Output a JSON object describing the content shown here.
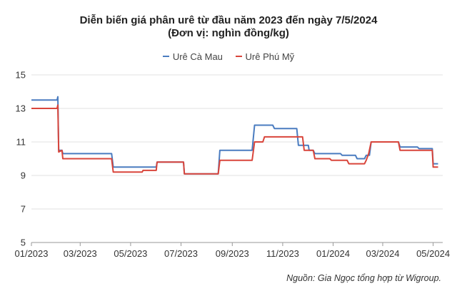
{
  "title_line1": "Diễn biến giá phân urê từ đầu năm 2023 đến ngày 7/5/2024",
  "title_line2": "(Đơn vị: nghìn đồng/kg)",
  "source": "Nguồn: Gia Ngọc tổng hợp từ Wigroup.",
  "chart_data": {
    "type": "line",
    "title": "Diễn biến giá phân urê từ đầu năm 2023 đến ngày 7/5/2024",
    "subtitle": "(Đơn vị: nghìn đồng/kg)",
    "xlabel": "",
    "ylabel": "",
    "xlim": [
      "2023-01-01",
      "2024-05-07"
    ],
    "ylim": [
      5,
      15
    ],
    "yticks": [
      5,
      7,
      9,
      11,
      13,
      15
    ],
    "xtick_labels": [
      "01/2023",
      "03/2023",
      "05/2023",
      "07/2023",
      "09/2023",
      "11/2023",
      "01/2024",
      "03/2024",
      "05/2024"
    ],
    "grid": true,
    "legend_position": "top-center",
    "series": [
      {
        "name": "Urê Cà Mau",
        "color": "#4a7cc0",
        "points": [
          [
            "2023-01-01",
            13.5
          ],
          [
            "2023-02-01",
            13.5
          ],
          [
            "2023-02-02",
            13.7
          ],
          [
            "2023-02-03",
            10.5
          ],
          [
            "2023-02-07",
            10.5
          ],
          [
            "2023-02-08",
            10.3
          ],
          [
            "2023-04-08",
            10.3
          ],
          [
            "2023-04-10",
            9.5
          ],
          [
            "2023-06-01",
            9.5
          ],
          [
            "2023-06-02",
            9.8
          ],
          [
            "2023-07-04",
            9.8
          ],
          [
            "2023-07-05",
            9.1
          ],
          [
            "2023-08-15",
            9.1
          ],
          [
            "2023-08-17",
            10.5
          ],
          [
            "2023-09-25",
            10.5
          ],
          [
            "2023-09-28",
            12.0
          ],
          [
            "2023-10-20",
            12.0
          ],
          [
            "2023-10-22",
            11.8
          ],
          [
            "2023-11-18",
            11.8
          ],
          [
            "2023-11-20",
            10.8
          ],
          [
            "2023-12-02",
            10.8
          ],
          [
            "2023-12-03",
            10.5
          ],
          [
            "2023-12-08",
            10.5
          ],
          [
            "2023-12-10",
            10.3
          ],
          [
            "2024-01-10",
            10.3
          ],
          [
            "2024-01-12",
            10.2
          ],
          [
            "2024-01-28",
            10.2
          ],
          [
            "2024-01-30",
            10.0
          ],
          [
            "2024-02-08",
            10.0
          ],
          [
            "2024-02-10",
            10.2
          ],
          [
            "2024-02-14",
            10.2
          ],
          [
            "2024-02-16",
            11.0
          ],
          [
            "2024-03-20",
            11.0
          ],
          [
            "2024-03-22",
            10.7
          ],
          [
            "2024-04-12",
            10.7
          ],
          [
            "2024-04-14",
            10.6
          ],
          [
            "2024-04-30",
            10.6
          ],
          [
            "2024-05-01",
            9.7
          ],
          [
            "2024-05-07",
            9.7
          ]
        ]
      },
      {
        "name": "Urê Phú Mỹ",
        "color": "#d9453b",
        "points": [
          [
            "2023-01-01",
            13.0
          ],
          [
            "2023-02-01",
            13.0
          ],
          [
            "2023-02-02",
            13.2
          ],
          [
            "2023-02-03",
            10.4
          ],
          [
            "2023-02-07",
            10.5
          ],
          [
            "2023-02-08",
            10.0
          ],
          [
            "2023-04-08",
            10.0
          ],
          [
            "2023-04-10",
            9.2
          ],
          [
            "2023-05-15",
            9.2
          ],
          [
            "2023-05-16",
            9.3
          ],
          [
            "2023-06-01",
            9.3
          ],
          [
            "2023-06-02",
            9.8
          ],
          [
            "2023-07-04",
            9.8
          ],
          [
            "2023-07-05",
            9.1
          ],
          [
            "2023-08-15",
            9.1
          ],
          [
            "2023-08-17",
            9.9
          ],
          [
            "2023-09-25",
            9.9
          ],
          [
            "2023-09-28",
            11.0
          ],
          [
            "2023-10-08",
            11.0
          ],
          [
            "2023-10-10",
            11.3
          ],
          [
            "2023-11-25",
            11.3
          ],
          [
            "2023-11-27",
            10.5
          ],
          [
            "2023-12-08",
            10.5
          ],
          [
            "2023-12-10",
            10.0
          ],
          [
            "2023-12-28",
            10.0
          ],
          [
            "2023-12-30",
            9.9
          ],
          [
            "2024-01-18",
            9.9
          ],
          [
            "2024-01-20",
            9.7
          ],
          [
            "2024-02-08",
            9.7
          ],
          [
            "2024-02-10",
            9.9
          ],
          [
            "2024-02-13",
            10.3
          ],
          [
            "2024-02-16",
            11.0
          ],
          [
            "2024-03-20",
            11.0
          ],
          [
            "2024-03-22",
            10.5
          ],
          [
            "2024-04-30",
            10.5
          ],
          [
            "2024-05-01",
            9.5
          ],
          [
            "2024-05-07",
            9.5
          ]
        ]
      }
    ]
  }
}
